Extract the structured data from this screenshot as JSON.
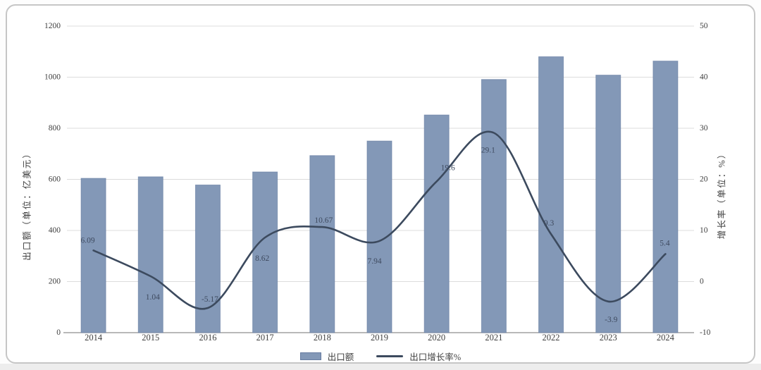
{
  "chart_data": {
    "type": "combo-bar-line",
    "categories": [
      "2014",
      "2015",
      "2016",
      "2017",
      "2018",
      "2019",
      "2020",
      "2021",
      "2022",
      "2023",
      "2024"
    ],
    "series": [
      {
        "name": "出口额",
        "type": "bar",
        "axis": "left",
        "values": [
          604,
          610,
          578,
          629,
          693,
          750,
          852,
          991,
          1080,
          1008,
          1063
        ]
      },
      {
        "name": "出口增长率%",
        "type": "line",
        "axis": "right",
        "values": [
          6.09,
          1.04,
          -5.17,
          8.62,
          10.67,
          7.94,
          19.6,
          29.1,
          9.3,
          -3.9,
          5.4
        ],
        "labels": [
          "6.09",
          "1.04",
          "-5.17",
          "8.62",
          "10.67",
          "7.94",
          "19.6",
          "29.1",
          "9.3",
          "-3.9",
          "5.4"
        ]
      }
    ],
    "y_left": {
      "title": "出口额（单位：亿美元）",
      "min": 0,
      "max": 1200,
      "step": 200
    },
    "y_right": {
      "title": "增长率（单位：%）",
      "min": -10,
      "max": 50,
      "step": 10
    },
    "grid": true,
    "legend_position": "bottom",
    "legend": {
      "bar": "出口额",
      "line": "出口增长率%"
    },
    "colors": {
      "bar_fill": "#8398B7",
      "bar_border": "#667CA1",
      "line": "#3C4A5E",
      "grid": "#DCDCDC",
      "axis_line": "#8F8F8F",
      "tick_text": "#3F3F3F",
      "point_label_text": "#3E4A5F"
    }
  }
}
